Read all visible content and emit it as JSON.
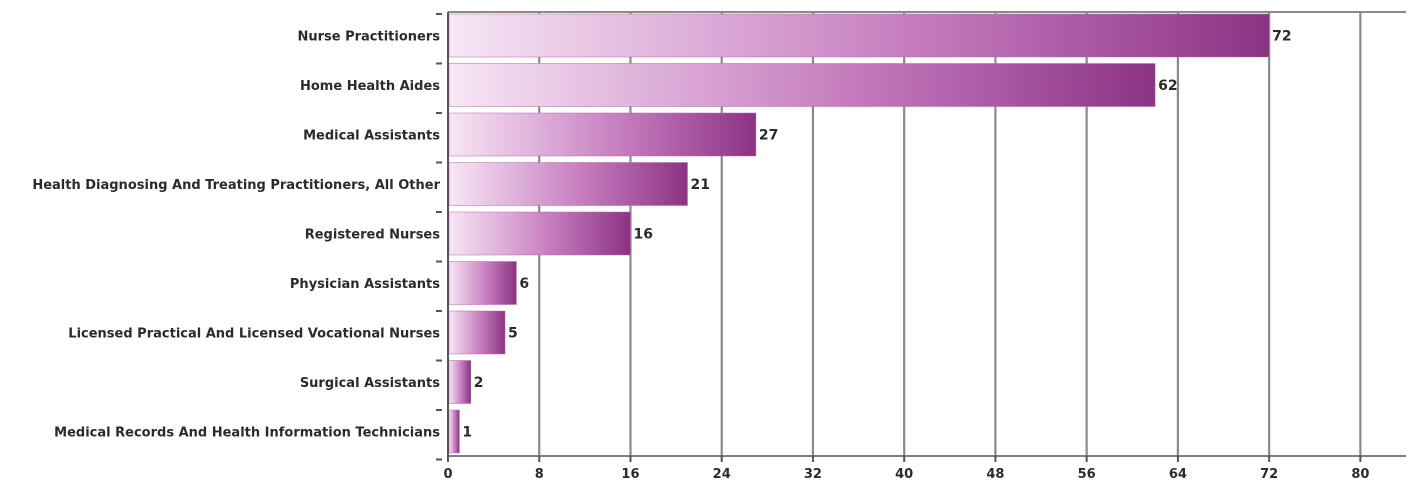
{
  "chart_data": {
    "type": "bar",
    "orientation": "horizontal",
    "categories": [
      "Nurse Practitioners",
      "Home Health Aides",
      "Medical Assistants",
      "Health Diagnosing And Treating Practitioners, All Other",
      "Registered Nurses",
      "Physician Assistants",
      "Licensed Practical And Licensed Vocational Nurses",
      "Surgical Assistants",
      "Medical Records And Health Information Technicians"
    ],
    "values": [
      72,
      62,
      27,
      21,
      16,
      6,
      5,
      2,
      1
    ],
    "value_labels": [
      "72",
      "62",
      "27",
      "21",
      "16",
      "6",
      "5",
      "2",
      "1"
    ],
    "title": "",
    "xlabel": "",
    "ylabel": "",
    "xlim": [
      0,
      84
    ],
    "x_ticks": [
      0,
      8,
      16,
      24,
      32,
      40,
      48,
      56,
      64,
      72,
      80
    ],
    "x_tick_labels": [
      "0",
      "8",
      "16",
      "24",
      "32",
      "40",
      "48",
      "56",
      "64",
      "72",
      "80"
    ],
    "grid": "vertical",
    "legend": "none",
    "colors": {
      "bar_start": "#f7e6f5",
      "bar_mid": "#c77fc0",
      "bar_end": "#8c3384",
      "grid": "#8a8a8a",
      "axis": "#555555",
      "text": "#2b2b2b"
    }
  }
}
